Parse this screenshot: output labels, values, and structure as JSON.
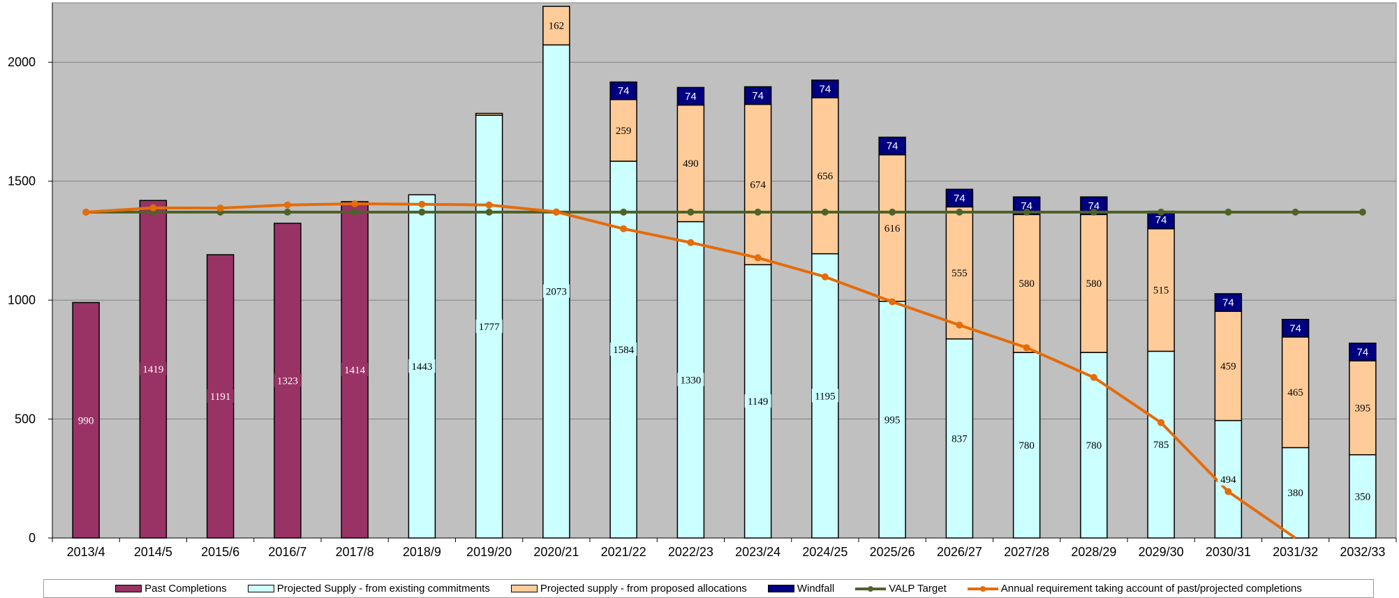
{
  "chart_data": {
    "type": "bar",
    "stacked": true,
    "categories": [
      "2013/4",
      "2014/5",
      "2015/6",
      "2016/7",
      "2017/8",
      "2018/9",
      "2019/20",
      "2020/21",
      "2021/22",
      "2022/23",
      "2023/24",
      "2024/25",
      "2025/26",
      "2026/27",
      "2027/28",
      "2028/29",
      "2029/30",
      "2030/31",
      "2031/32",
      "2032/33"
    ],
    "ylim": [
      0,
      2250
    ],
    "yticks": [
      0,
      500,
      1000,
      1500,
      2000
    ],
    "grid": true,
    "legend_position": "bottom",
    "colors": {
      "plot_background": "#c0c0c0",
      "past": "#993366",
      "existing": "#ccffff",
      "proposed": "#ffcc99",
      "windfall": "#000080",
      "target": "#4f6228",
      "requirement": "#e46c0a"
    },
    "series": [
      {
        "key": "past",
        "name": "Past Completions",
        "values": [
          990,
          1419,
          1191,
          1323,
          1414,
          0,
          0,
          0,
          0,
          0,
          0,
          0,
          0,
          0,
          0,
          0,
          0,
          0,
          0,
          0
        ],
        "labels": [
          "990",
          "1419",
          "1191",
          "1323",
          "1414",
          "",
          "",
          "",
          "",
          "",
          "",
          "",
          "",
          "",
          "",
          "",
          "",
          "",
          "",
          ""
        ]
      },
      {
        "key": "existing",
        "name": "Projected Supply - from existing commitments",
        "values": [
          0,
          0,
          0,
          0,
          0,
          1443,
          1777,
          2073,
          1584,
          1330,
          1149,
          1195,
          995,
          837,
          780,
          780,
          785,
          494,
          380,
          350
        ],
        "labels": [
          "",
          "",
          "",
          "",
          "",
          "1443",
          "1777",
          "2073",
          "1584",
          "1330",
          "1149",
          "1195",
          "995",
          "837",
          "780",
          "780",
          "785",
          "494",
          "380",
          "350"
        ]
      },
      {
        "key": "proposed",
        "name": "Projected supply - from proposed allocations",
        "values": [
          0,
          0,
          0,
          0,
          0,
          0,
          8,
          162,
          259,
          490,
          674,
          656,
          616,
          555,
          580,
          580,
          515,
          459,
          465,
          395
        ],
        "labels": [
          "",
          "",
          "",
          "",
          "",
          "",
          "",
          "162",
          "259",
          "490",
          "674",
          "656",
          "616",
          "555",
          "580",
          "580",
          "515",
          "459",
          "465",
          "395"
        ]
      },
      {
        "key": "windfall",
        "name": "Windfall",
        "values": [
          0,
          0,
          0,
          0,
          0,
          0,
          0,
          0,
          74,
          74,
          74,
          74,
          74,
          74,
          74,
          74,
          74,
          74,
          74,
          74
        ],
        "labels": [
          "",
          "",
          "",
          "",
          "",
          "",
          "",
          "",
          "74",
          "74",
          "74",
          "74",
          "74",
          "74",
          "74",
          "74",
          "74",
          "74",
          "74",
          "74"
        ]
      }
    ],
    "lines": [
      {
        "key": "target",
        "name": "VALP Target",
        "values": [
          1370,
          1370,
          1370,
          1370,
          1370,
          1370,
          1370,
          1370,
          1370,
          1370,
          1370,
          1370,
          1370,
          1370,
          1370,
          1370,
          1370,
          1370,
          1370,
          1370
        ]
      },
      {
        "key": "requirement",
        "name": "Annual requirement taking account of past/projected completions",
        "values": [
          1370,
          1388,
          1387,
          1400,
          1405,
          1403,
          1400,
          1371,
          1300,
          1242,
          1178,
          1098,
          993,
          895,
          800,
          675,
          485,
          195,
          null,
          null
        ],
        "end_x": 18.5,
        "end_y": 0
      }
    ]
  }
}
